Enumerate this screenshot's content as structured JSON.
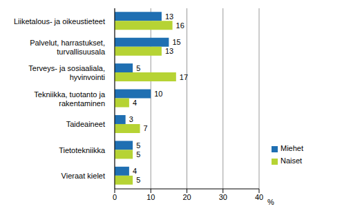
{
  "chart_data": {
    "type": "bar",
    "orientation": "horizontal",
    "categories": [
      "Liiketalous- ja oikeustieteet",
      "Palvelut, harrastukset, turvallisuusala",
      "Terveys- ja sosiaaliala, hyvinvointi",
      "Tekniikka, tuotanto ja rakentaminen",
      "Taideaineet",
      "Tietotekniikka",
      "Vieraat kielet"
    ],
    "series": [
      {
        "name": "Miehet",
        "color": "#1f6fb2",
        "values": [
          13,
          15,
          5,
          10,
          3,
          5,
          4
        ]
      },
      {
        "name": "Naiset",
        "color": "#b6d334",
        "values": [
          16,
          13,
          17,
          4,
          7,
          5,
          5
        ]
      }
    ],
    "x_label": "%",
    "xlim": [
      0,
      40
    ],
    "xticks": [
      0,
      10,
      20,
      30,
      40
    ],
    "grid": true,
    "legend": "right",
    "data_labels": true
  }
}
